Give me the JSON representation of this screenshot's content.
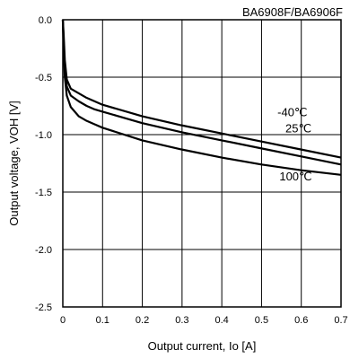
{
  "chart_data": {
    "type": "line",
    "title": "BA6908F/BA6906F",
    "xlabel": "Output current, Io [A]",
    "ylabel": "Output voltage, VOH [V]",
    "xlim": [
      0,
      0.7
    ],
    "ylim": [
      -2.5,
      0
    ],
    "xticks": [
      "0",
      "0.1",
      "0.2",
      "0.3",
      "0.4",
      "0.5",
      "0.6",
      "0.7"
    ],
    "yticks": [
      "0.0",
      "-0.5",
      "-1.0",
      "-1.5",
      "-2.0",
      "-2.5"
    ],
    "grid": true,
    "series": [
      {
        "name": "-40℃",
        "x": [
          0,
          0.002,
          0.005,
          0.01,
          0.02,
          0.04,
          0.06,
          0.08,
          0.1,
          0.2,
          0.3,
          0.4,
          0.5,
          0.6,
          0.7
        ],
        "y": [
          0,
          -0.12,
          -0.35,
          -0.52,
          -0.6,
          -0.64,
          -0.68,
          -0.71,
          -0.74,
          -0.84,
          -0.92,
          -0.99,
          -1.06,
          -1.13,
          -1.2
        ]
      },
      {
        "name": "25℃",
        "x": [
          0,
          0.002,
          0.005,
          0.01,
          0.02,
          0.04,
          0.06,
          0.08,
          0.1,
          0.2,
          0.3,
          0.4,
          0.5,
          0.6,
          0.7
        ],
        "y": [
          0,
          -0.18,
          -0.42,
          -0.58,
          -0.66,
          -0.71,
          -0.75,
          -0.78,
          -0.8,
          -0.9,
          -0.98,
          -1.05,
          -1.12,
          -1.19,
          -1.26
        ]
      },
      {
        "name": "100℃",
        "x": [
          0,
          0.002,
          0.005,
          0.01,
          0.02,
          0.04,
          0.06,
          0.08,
          0.1,
          0.2,
          0.3,
          0.4,
          0.5,
          0.6,
          0.7
        ],
        "y": [
          0,
          -0.25,
          -0.5,
          -0.66,
          -0.76,
          -0.84,
          -0.88,
          -0.91,
          -0.94,
          -1.05,
          -1.13,
          -1.2,
          -1.26,
          -1.31,
          -1.35
        ]
      }
    ],
    "series_labels": [
      {
        "text": "-40℃",
        "x": 0.54,
        "y": -0.84
      },
      {
        "text": "25℃",
        "x": 0.56,
        "y": -0.98
      },
      {
        "text": "100℃",
        "x": 0.545,
        "y": -1.4
      }
    ],
    "colors": {
      "line": "#000000",
      "grid": "#000000"
    }
  }
}
